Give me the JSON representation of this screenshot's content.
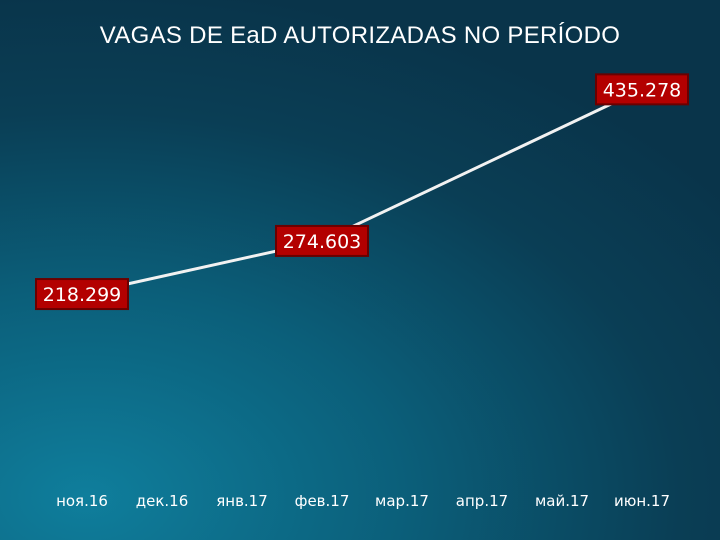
{
  "chart_data": {
    "type": "line",
    "title": "VAGAS DE EaD AUTORIZADAS NO PERÍODO",
    "categories": [
      "ноя.16",
      "дек.16",
      "янв.17",
      "фев.17",
      "мар.17",
      "апр.17",
      "май.17",
      "июн.17"
    ],
    "series": [
      {
        "name": "",
        "points": [
          {
            "x": "ноя.16",
            "y": 218299,
            "label": "218.299"
          },
          {
            "x": "фев.17",
            "y": 274603,
            "label": "274.603"
          },
          {
            "x": "июн.17",
            "y": 435278,
            "label": "435.278"
          }
        ]
      }
    ],
    "ylim": [
      0,
      530000
    ],
    "grid": false,
    "legend": "none",
    "colors": {
      "line": "#f2f2f2",
      "label_bg": "#b30000",
      "text": "#ffffff"
    }
  }
}
